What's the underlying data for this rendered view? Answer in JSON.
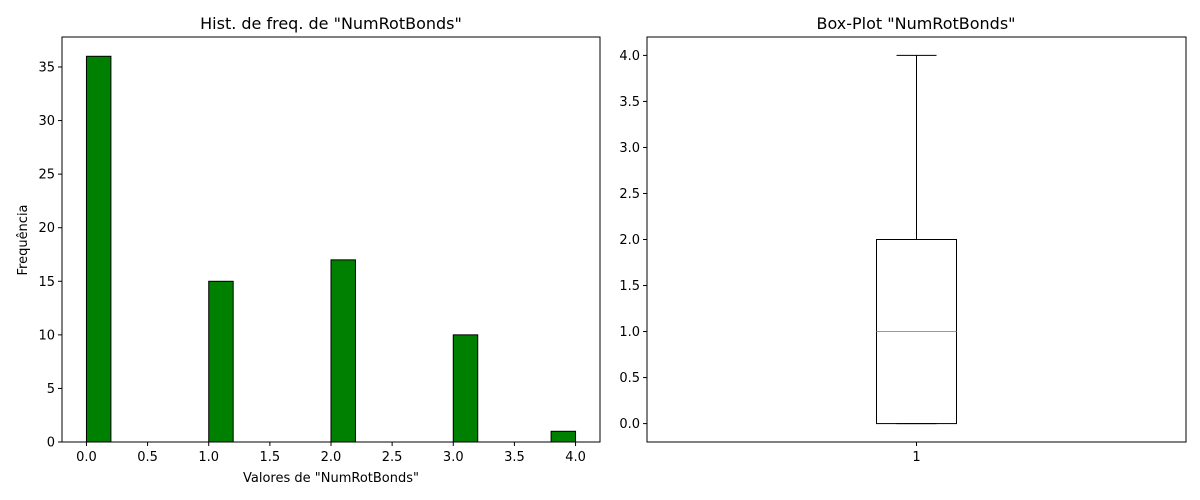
{
  "chart_data": [
    {
      "type": "bar",
      "title": "Hist. de freq. de \"NumRotBonds\"",
      "xlabel": "Valores de \"NumRotBonds\"",
      "ylabel": "Frequência",
      "xlim": [
        -0.2,
        4.2
      ],
      "ylim": [
        0,
        37.8
      ],
      "xticks": [
        "0.0",
        "0.5",
        "1.0",
        "1.5",
        "2.0",
        "2.5",
        "3.0",
        "3.5",
        "4.0"
      ],
      "yticks": [
        "0",
        "5",
        "10",
        "15",
        "20",
        "25",
        "30",
        "35"
      ],
      "bins": [
        {
          "x0": 0.0,
          "x1": 0.2,
          "count": 36
        },
        {
          "x0": 1.0,
          "x1": 1.2,
          "count": 15
        },
        {
          "x0": 2.0,
          "x1": 2.2,
          "count": 17
        },
        {
          "x0": 3.0,
          "x1": 3.2,
          "count": 10
        },
        {
          "x0": 3.8,
          "x1": 4.0,
          "count": 1
        }
      ],
      "bar_color": "#008000",
      "edge_color": "#000000"
    },
    {
      "type": "box",
      "title": "Box-Plot \"NumRotBonds\"",
      "ylim": [
        -0.2,
        4.2
      ],
      "yticks": [
        "0.0",
        "0.5",
        "1.0",
        "1.5",
        "2.0",
        "2.5",
        "3.0",
        "3.5",
        "4.0"
      ],
      "xticks": [
        "1"
      ],
      "box": {
        "whisker_low": 0,
        "q1": 0,
        "median": 1,
        "q3": 2,
        "whisker_high": 4
      },
      "median_color": "#ff7f0e"
    }
  ]
}
